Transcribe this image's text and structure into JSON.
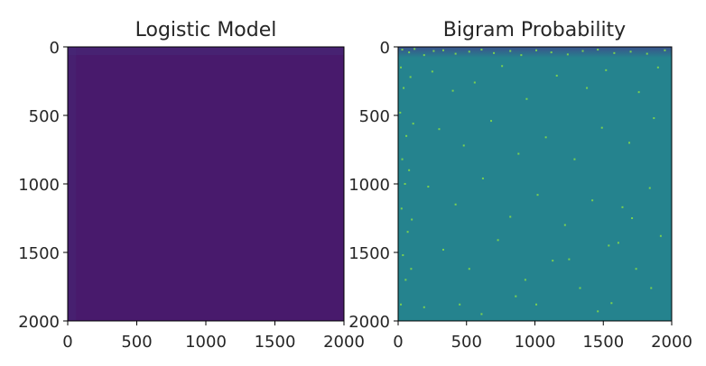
{
  "chart_data": [
    {
      "type": "heatmap",
      "title": "Logistic Model",
      "xlabel": "",
      "ylabel": "",
      "xlim": [
        0,
        2000
      ],
      "ylim": [
        2000,
        0
      ],
      "x_ticks": [
        0,
        500,
        1000,
        1500,
        2000
      ],
      "y_ticks": [
        0,
        500,
        1000,
        1500,
        2000
      ],
      "x_tick_labels": [
        "0",
        "500",
        "1000",
        "1500",
        "2000"
      ],
      "y_tick_labels": [
        "0",
        "500",
        "1000",
        "1500",
        "2000"
      ],
      "colormap": "viridis",
      "background_level": 0.02,
      "background_color": "#481a6c",
      "description_of_values": "nearly uniform low values; faint slightly brighter band along the top rows and left columns",
      "bright_band": {
        "rows": [
          0,
          60
        ],
        "cols": [
          0,
          60
        ],
        "level": 0.06
      }
    },
    {
      "type": "heatmap",
      "title": "Bigram Probability",
      "xlabel": "",
      "ylabel": "",
      "xlim": [
        0,
        2000
      ],
      "ylim": [
        2000,
        0
      ],
      "x_ticks": [
        0,
        500,
        1000,
        1500,
        2000
      ],
      "y_ticks": [
        0,
        500,
        1000,
        1500,
        2000
      ],
      "x_tick_labels": [
        "0",
        "500",
        "1000",
        "1500",
        "2000"
      ],
      "y_tick_labels": [
        "0",
        "500",
        "1000",
        "1500",
        "2000"
      ],
      "colormap": "viridis",
      "background_level": 0.47,
      "background_color": "#25838e",
      "top_band": {
        "rows": [
          0,
          80
        ],
        "color": "#3b528b"
      },
      "bright_points": [
        [
          30,
          20
        ],
        [
          80,
          40
        ],
        [
          120,
          15
        ],
        [
          190,
          60
        ],
        [
          260,
          30
        ],
        [
          330,
          25
        ],
        [
          420,
          50
        ],
        [
          520,
          35
        ],
        [
          610,
          20
        ],
        [
          700,
          45
        ],
        [
          820,
          30
        ],
        [
          900,
          60
        ],
        [
          1010,
          25
        ],
        [
          1120,
          40
        ],
        [
          1240,
          55
        ],
        [
          1350,
          30
        ],
        [
          1460,
          20
        ],
        [
          1580,
          45
        ],
        [
          1700,
          35
        ],
        [
          1820,
          50
        ],
        [
          1950,
          25
        ],
        [
          20,
          150
        ],
        [
          40,
          300
        ],
        [
          15,
          480
        ],
        [
          60,
          650
        ],
        [
          30,
          820
        ],
        [
          50,
          1000
        ],
        [
          25,
          1180
        ],
        [
          70,
          1350
        ],
        [
          35,
          1520
        ],
        [
          55,
          1700
        ],
        [
          20,
          1880
        ],
        [
          90,
          220
        ],
        [
          110,
          560
        ],
        [
          80,
          900
        ],
        [
          100,
          1260
        ],
        [
          95,
          1620
        ],
        [
          250,
          180
        ],
        [
          400,
          320
        ],
        [
          560,
          260
        ],
        [
          760,
          140
        ],
        [
          940,
          380
        ],
        [
          1160,
          210
        ],
        [
          1380,
          300
        ],
        [
          1520,
          170
        ],
        [
          1760,
          330
        ],
        [
          1900,
          150
        ],
        [
          300,
          600
        ],
        [
          480,
          720
        ],
        [
          680,
          540
        ],
        [
          880,
          780
        ],
        [
          1080,
          660
        ],
        [
          1290,
          820
        ],
        [
          1490,
          590
        ],
        [
          1690,
          700
        ],
        [
          1870,
          520
        ],
        [
          220,
          1020
        ],
        [
          420,
          1150
        ],
        [
          620,
          960
        ],
        [
          820,
          1240
        ],
        [
          1020,
          1080
        ],
        [
          1220,
          1300
        ],
        [
          1420,
          1120
        ],
        [
          1640,
          1170
        ],
        [
          1840,
          1030
        ],
        [
          330,
          1480
        ],
        [
          520,
          1620
        ],
        [
          730,
          1410
        ],
        [
          930,
          1700
        ],
        [
          1130,
          1560
        ],
        [
          1330,
          1760
        ],
        [
          1540,
          1450
        ],
        [
          1740,
          1620
        ],
        [
          1920,
          1380
        ],
        [
          190,
          1900
        ],
        [
          610,
          1950
        ],
        [
          1010,
          1880
        ],
        [
          1460,
          1930
        ],
        [
          1850,
          1760
        ],
        [
          1610,
          1430
        ],
        [
          1710,
          1250
        ],
        [
          1560,
          1870
        ],
        [
          1250,
          1550
        ],
        [
          860,
          1820
        ],
        [
          450,
          1880
        ]
      ],
      "bright_point_color": "#7ad151"
    }
  ]
}
